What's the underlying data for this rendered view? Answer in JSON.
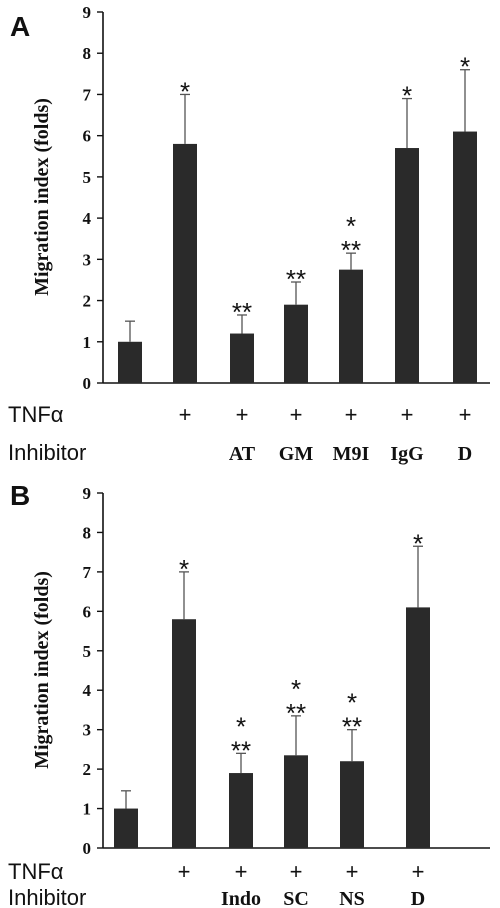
{
  "chart_data": [
    {
      "panel": "A",
      "type": "bar",
      "ylabel": "Migration index (folds)",
      "ylim": [
        0,
        9
      ],
      "yticks": [
        "0",
        "1",
        "2",
        "3",
        "4",
        "5",
        "6",
        "7",
        "8",
        "9"
      ],
      "row_labels": {
        "tnf": "TNFα",
        "inhibitor": "Inhibitor"
      },
      "tnf": [
        "",
        "+",
        "+",
        "+",
        "+",
        "+",
        "+"
      ],
      "inhibitor": [
        "",
        "",
        "AT",
        "GM",
        "M9I",
        "IgG",
        "D"
      ],
      "values": [
        1.0,
        5.8,
        1.2,
        1.9,
        2.75,
        5.7,
        6.1
      ],
      "errors": [
        0.5,
        1.2,
        0.45,
        0.55,
        0.4,
        1.2,
        1.5
      ],
      "sig_top": [
        "",
        "*",
        "",
        "",
        "*",
        "*",
        "*"
      ],
      "sig_bottom": [
        "",
        "",
        "**",
        "**",
        "**",
        "",
        ""
      ]
    },
    {
      "panel": "B",
      "type": "bar",
      "ylabel": "Migration index (folds)",
      "ylim": [
        0,
        9
      ],
      "yticks": [
        "0",
        "1",
        "2",
        "3",
        "4",
        "5",
        "6",
        "7",
        "8",
        "9"
      ],
      "row_labels": {
        "tnf": "TNFα",
        "inhibitor": "Inhibitor"
      },
      "tnf": [
        "",
        "+",
        "+",
        "+",
        "+",
        "+"
      ],
      "inhibitor": [
        "",
        "",
        "Indo",
        "SC",
        "NS",
        "D"
      ],
      "values": [
        1.0,
        5.8,
        1.9,
        2.35,
        2.2,
        6.1
      ],
      "errors": [
        0.45,
        1.2,
        0.5,
        1.0,
        0.8,
        1.55
      ],
      "sig_top": [
        "",
        "*",
        "*",
        "*",
        "*",
        "*"
      ],
      "sig_bottom": [
        "",
        "",
        "**",
        "**",
        "**",
        ""
      ]
    }
  ]
}
